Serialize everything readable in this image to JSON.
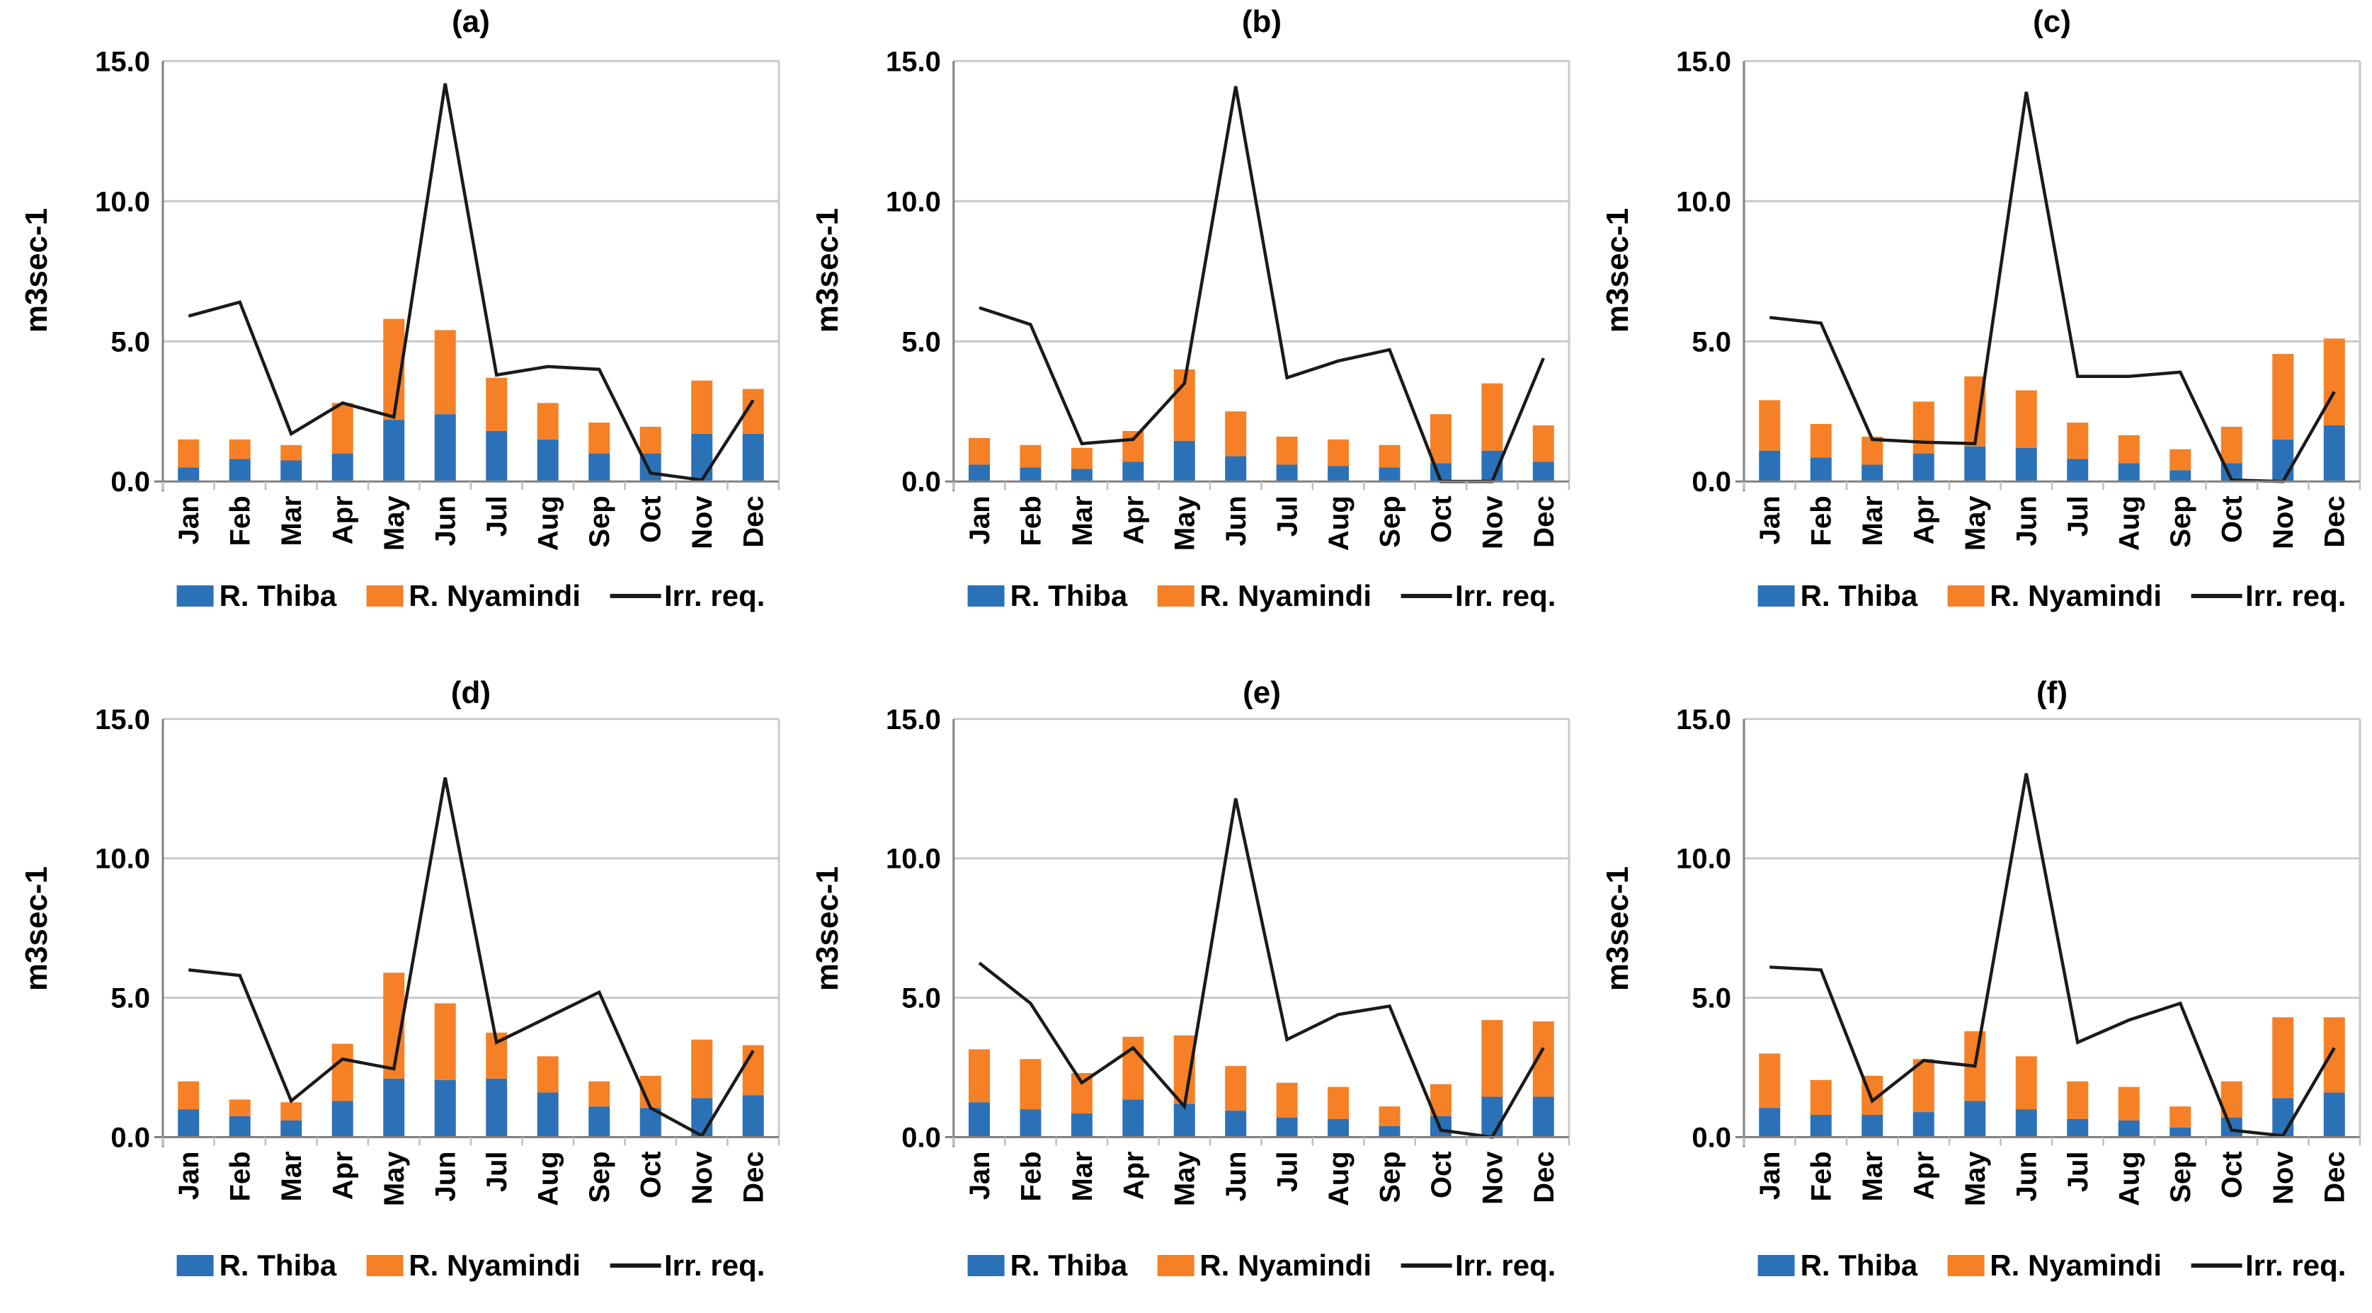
{
  "figure": {
    "ylabel": "m3sec-1",
    "yticks": [
      {
        "value": 15,
        "label": "15.0"
      },
      {
        "value": 10,
        "label": "10.0"
      },
      {
        "value": 5,
        "label": "5.0"
      },
      {
        "value": 0,
        "label": "0.0"
      }
    ],
    "ylim": [
      0,
      15
    ],
    "months": [
      "Jan",
      "Feb",
      "Mar",
      "Apr",
      "May",
      "Jun",
      "Jul",
      "Aug",
      "Sep",
      "Oct",
      "Nov",
      "Dec"
    ],
    "legend": {
      "thiba": "R. Thiba",
      "nyamindi": "R. Nyamindi",
      "irr": "Irr. req."
    },
    "colors": {
      "thiba": "#2B71B8",
      "nyamindi": "#F68025",
      "irr": "#1A1A1A",
      "grid": "#C9C9C9",
      "axis": "#808080",
      "tick": "#BFBFBF",
      "text": "#000000"
    }
  },
  "chart_data": [
    {
      "type": "bar",
      "title": "(a)",
      "stacked": true,
      "categories": [
        "Jan",
        "Feb",
        "Mar",
        "Apr",
        "May",
        "Jun",
        "Jul",
        "Aug",
        "Sep",
        "Oct",
        "Nov",
        "Dec"
      ],
      "ylabel": "m3sec-1",
      "ylim": [
        0,
        15
      ],
      "series": [
        {
          "name": "R. Thiba",
          "type": "bar",
          "values": [
            0.5,
            0.8,
            0.75,
            1.0,
            2.2,
            2.4,
            1.8,
            1.5,
            1.0,
            1.0,
            1.7,
            1.7
          ]
        },
        {
          "name": "R. Nyamindi",
          "type": "bar",
          "values": [
            1.0,
            0.7,
            0.55,
            1.8,
            3.6,
            3.0,
            1.9,
            1.3,
            1.1,
            0.95,
            1.9,
            1.6
          ]
        },
        {
          "name": "Irr. req.",
          "type": "line",
          "values": [
            5.9,
            6.4,
            1.7,
            2.8,
            2.3,
            14.2,
            3.8,
            4.1,
            4.0,
            0.3,
            0.05,
            2.9
          ]
        }
      ]
    },
    {
      "type": "bar",
      "title": "(b)",
      "stacked": true,
      "categories": [
        "Jan",
        "Feb",
        "Mar",
        "Apr",
        "May",
        "Jun",
        "Jul",
        "Aug",
        "Sep",
        "Oct",
        "Nov",
        "Dec"
      ],
      "ylabel": "m3sec-1",
      "ylim": [
        0,
        15
      ],
      "series": [
        {
          "name": "R. Thiba",
          "type": "bar",
          "values": [
            0.6,
            0.5,
            0.45,
            0.7,
            1.45,
            0.9,
            0.6,
            0.55,
            0.5,
            0.65,
            1.1,
            0.7
          ]
        },
        {
          "name": "R. Nyamindi",
          "type": "bar",
          "values": [
            0.95,
            0.8,
            0.75,
            1.1,
            2.55,
            1.6,
            1.0,
            0.95,
            0.8,
            1.75,
            2.4,
            1.3
          ]
        },
        {
          "name": "Irr. req.",
          "type": "line",
          "values": [
            6.2,
            5.6,
            1.35,
            1.5,
            3.5,
            14.1,
            3.7,
            4.3,
            4.7,
            0.0,
            0.0,
            4.4
          ]
        }
      ]
    },
    {
      "type": "bar",
      "title": "(c)",
      "stacked": true,
      "categories": [
        "Jan",
        "Feb",
        "Mar",
        "Apr",
        "May",
        "Jun",
        "Jul",
        "Aug",
        "Sep",
        "Oct",
        "Nov",
        "Dec"
      ],
      "ylabel": "m3sec-1",
      "ylim": [
        0,
        15
      ],
      "series": [
        {
          "name": "R. Thiba",
          "type": "bar",
          "values": [
            1.1,
            0.85,
            0.6,
            1.0,
            1.25,
            1.2,
            0.8,
            0.65,
            0.4,
            0.65,
            1.5,
            2.0
          ]
        },
        {
          "name": "R. Nyamindi",
          "type": "bar",
          "values": [
            1.8,
            1.2,
            1.0,
            1.85,
            2.5,
            2.05,
            1.3,
            1.0,
            0.75,
            1.3,
            3.05,
            3.1
          ]
        },
        {
          "name": "Irr. req.",
          "type": "line",
          "values": [
            5.85,
            5.65,
            1.5,
            1.4,
            1.35,
            13.9,
            3.75,
            3.75,
            3.9,
            0.05,
            0.0,
            3.2
          ]
        }
      ]
    },
    {
      "type": "bar",
      "title": "(d)",
      "stacked": true,
      "categories": [
        "Jan",
        "Feb",
        "Mar",
        "Apr",
        "May",
        "Jun",
        "Jul",
        "Aug",
        "Sep",
        "Oct",
        "Nov",
        "Dec"
      ],
      "ylabel": "m3sec-1",
      "ylim": [
        0,
        15
      ],
      "series": [
        {
          "name": "R. Thiba",
          "type": "bar",
          "values": [
            1.0,
            0.75,
            0.6,
            1.3,
            2.1,
            2.05,
            2.1,
            1.6,
            1.1,
            1.05,
            1.4,
            1.5
          ]
        },
        {
          "name": "R. Nyamindi",
          "type": "bar",
          "values": [
            1.0,
            0.6,
            0.65,
            2.05,
            3.8,
            2.75,
            1.65,
            1.3,
            0.9,
            1.15,
            2.1,
            1.8
          ]
        },
        {
          "name": "Irr. req.",
          "type": "line",
          "values": [
            6.0,
            5.8,
            1.3,
            2.8,
            2.45,
            12.9,
            3.4,
            4.3,
            5.2,
            1.05,
            0.05,
            3.1
          ]
        }
      ]
    },
    {
      "type": "bar",
      "title": "(e)",
      "stacked": true,
      "categories": [
        "Jan",
        "Feb",
        "Mar",
        "Apr",
        "May",
        "Jun",
        "Jul",
        "Aug",
        "Sep",
        "Oct",
        "Nov",
        "Dec"
      ],
      "ylabel": "m3sec-1",
      "ylim": [
        0,
        15
      ],
      "series": [
        {
          "name": "R. Thiba",
          "type": "bar",
          "values": [
            1.25,
            1.0,
            0.85,
            1.35,
            1.2,
            0.95,
            0.7,
            0.65,
            0.4,
            0.75,
            1.45,
            1.45
          ]
        },
        {
          "name": "R. Nyamindi",
          "type": "bar",
          "values": [
            1.9,
            1.8,
            1.45,
            2.25,
            2.45,
            1.6,
            1.25,
            1.15,
            0.7,
            1.15,
            2.75,
            2.7
          ]
        },
        {
          "name": "Irr. req.",
          "type": "line",
          "values": [
            6.25,
            4.8,
            1.95,
            3.2,
            1.1,
            12.15,
            3.5,
            4.4,
            4.7,
            0.25,
            0.0,
            3.2
          ]
        }
      ]
    },
    {
      "type": "bar",
      "title": "(f)",
      "stacked": true,
      "categories": [
        "Jan",
        "Feb",
        "Mar",
        "Apr",
        "May",
        "Jun",
        "Jul",
        "Aug",
        "Sep",
        "Oct",
        "Nov",
        "Dec"
      ],
      "ylabel": "m3sec-1",
      "ylim": [
        0,
        15
      ],
      "series": [
        {
          "name": "R. Thiba",
          "type": "bar",
          "values": [
            1.05,
            0.8,
            0.8,
            0.9,
            1.3,
            1.0,
            0.65,
            0.6,
            0.35,
            0.7,
            1.4,
            1.6
          ]
        },
        {
          "name": "R. Nyamindi",
          "type": "bar",
          "values": [
            1.95,
            1.25,
            1.4,
            1.9,
            2.5,
            1.9,
            1.35,
            1.2,
            0.75,
            1.3,
            2.9,
            2.7
          ]
        },
        {
          "name": "Irr. req.",
          "type": "line",
          "values": [
            6.1,
            6.0,
            1.3,
            2.75,
            2.55,
            13.05,
            3.4,
            4.2,
            4.8,
            0.25,
            0.05,
            3.2
          ]
        }
      ]
    }
  ]
}
